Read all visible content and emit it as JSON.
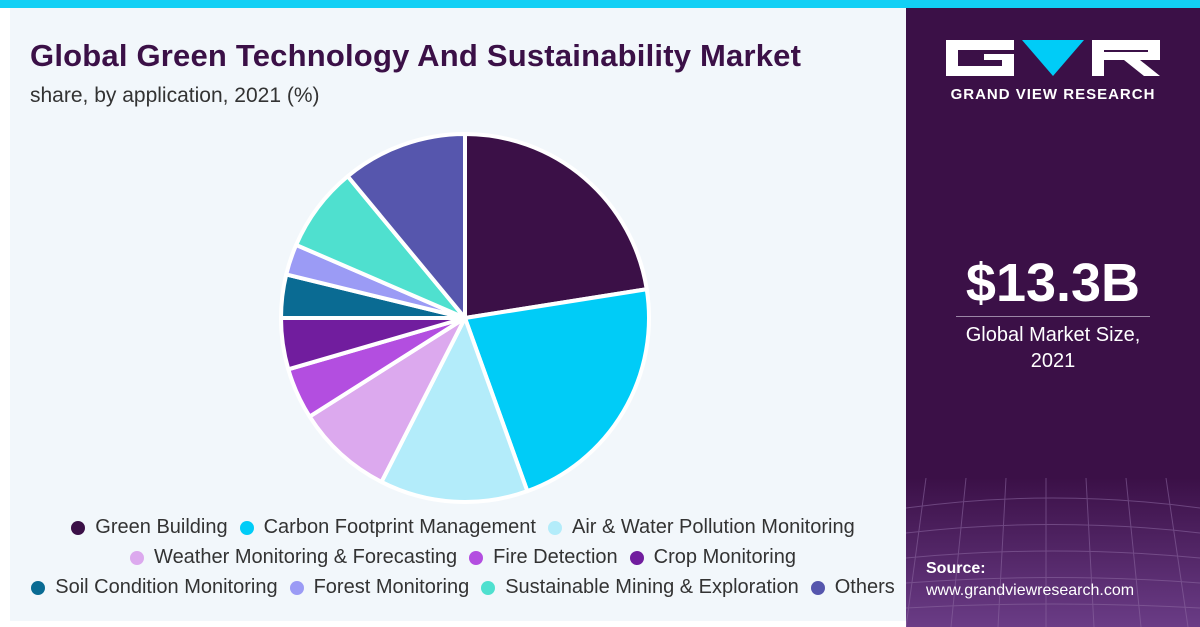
{
  "header": {
    "title": "Global Green Technology And Sustainability Market",
    "subtitle": "share, by application, 2021 (%)"
  },
  "brand": {
    "name": "GRAND VIEW RESEARCH",
    "logo_icon": "gvr-logo-icon"
  },
  "highlight": {
    "value": "$13.3B",
    "label_line1": "Global Market Size,",
    "label_line2": "2021"
  },
  "source": {
    "label": "Source:",
    "url": "www.grandviewresearch.com"
  },
  "colors": {
    "accent_bar": "#12d0f5",
    "panel": "#3b1047",
    "title": "#3b1047",
    "background": "#f2f7fb"
  },
  "chart_data": {
    "type": "pie",
    "title": "Global Green Technology And Sustainability Market",
    "subtitle": "share, by application, 2021 (%)",
    "legend_position": "bottom",
    "slices": [
      {
        "name": "Green Building",
        "value": 22.5,
        "color": "#3b1047"
      },
      {
        "name": "Carbon Footprint Management",
        "value": 22.0,
        "color": "#00ccf7"
      },
      {
        "name": "Air & Water Pollution Monitoring",
        "value": 13.0,
        "color": "#b3ecfa"
      },
      {
        "name": "Weather Monitoring & Forecasting",
        "value": 8.5,
        "color": "#dca9ee"
      },
      {
        "name": "Fire Detection",
        "value": 4.5,
        "color": "#b34ee0"
      },
      {
        "name": "Crop Monitoring",
        "value": 4.5,
        "color": "#711d9e"
      },
      {
        "name": "Soil Condition Monitoring",
        "value": 3.8,
        "color": "#0a6b93"
      },
      {
        "name": "Forest Monitoring",
        "value": 2.7,
        "color": "#9b9bf5"
      },
      {
        "name": "Sustainable Mining & Exploration",
        "value": 7.5,
        "color": "#4fe0cf"
      },
      {
        "name": "Others",
        "value": 11.0,
        "color": "#5656ad"
      }
    ]
  }
}
